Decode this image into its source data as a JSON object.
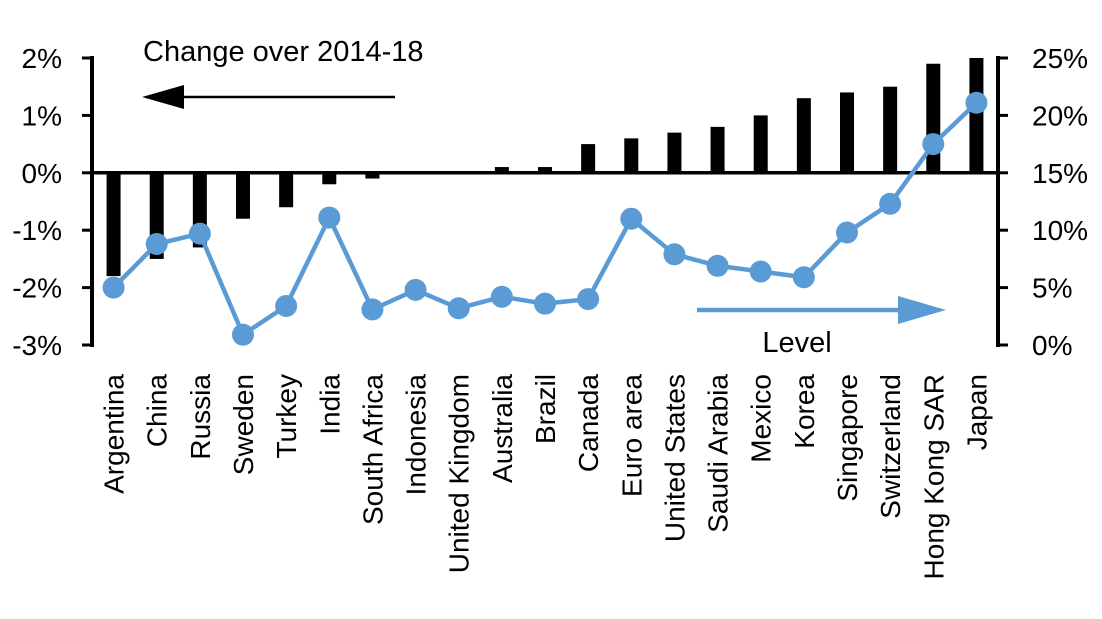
{
  "chart_data": {
    "type": "bar",
    "subtype": "combo-bar-line-dual-axis",
    "title": "",
    "categories": [
      "Argentina",
      "China",
      "Russia",
      "Sweden",
      "Turkey",
      "India",
      "South Africa",
      "Indonesia",
      "United Kingdom",
      "Australia",
      "Brazil",
      "Canada",
      "Euro area",
      "United States",
      "Saudi Arabia",
      "Mexico",
      "Korea",
      "Singapore",
      "Switzerland",
      "Hong Kong SAR",
      "Japan"
    ],
    "series": [
      {
        "name": "Change over 2014-18",
        "type": "bar",
        "axis": "left",
        "color": "#000000",
        "values": [
          -1.8,
          -1.5,
          -1.3,
          -0.8,
          -0.6,
          -0.2,
          -0.1,
          0,
          0,
          0.1,
          0.1,
          0.5,
          0.6,
          0.7,
          0.8,
          1.0,
          1.3,
          1.4,
          1.5,
          1.9,
          2.0
        ]
      },
      {
        "name": "Level",
        "type": "line",
        "axis": "right",
        "color": "#5B9BD5",
        "values": [
          5.0,
          8.8,
          9.7,
          0.9,
          3.4,
          11.1,
          3.1,
          4.8,
          3.2,
          4.2,
          3.6,
          4.0,
          11.0,
          7.9,
          6.9,
          6.4,
          5.9,
          9.8,
          12.3,
          17.5,
          21.1
        ]
      }
    ],
    "left_axis": {
      "ticks": [
        "2%",
        "1%",
        "0%",
        "-1%",
        "-2%",
        "-3%"
      ],
      "min": -3,
      "max": 2
    },
    "right_axis": {
      "ticks": [
        "25%",
        "20%",
        "15%",
        "10%",
        "5%",
        "0%"
      ],
      "min": 0,
      "max": 25
    },
    "annotations": {
      "bar_label": "Change over 2014-18",
      "line_label": "Level",
      "bar_arrow_direction": "left",
      "line_arrow_direction": "right"
    },
    "layout_hints": {
      "grid": "off",
      "legend": "inline-annotations",
      "category_labels": "rotated-90"
    }
  }
}
